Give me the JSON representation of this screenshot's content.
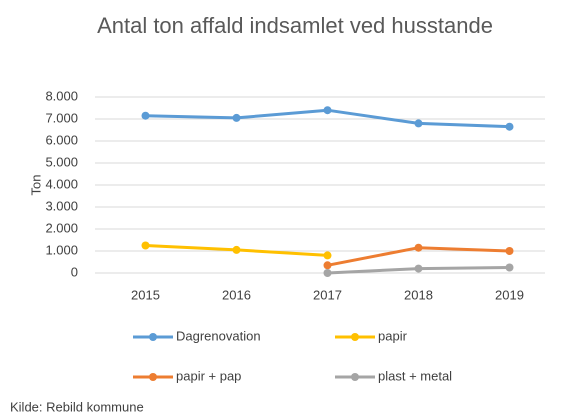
{
  "chart_data": {
    "type": "line",
    "title": "Antal ton affald indsamlet  ved husstande",
    "ylabel": "Ton",
    "categories": [
      "2015",
      "2016",
      "2017",
      "2018",
      "2019"
    ],
    "series": [
      {
        "name": "Dagrenovation",
        "color": "#5b9bd5",
        "values": [
          7150,
          7050,
          7400,
          6800,
          6650
        ]
      },
      {
        "name": "papir",
        "color": "#ffc000",
        "values": [
          1250,
          1050,
          800,
          null,
          null
        ]
      },
      {
        "name": "papir + pap",
        "color": "#ed7d31",
        "values": [
          null,
          null,
          350,
          1150,
          1000
        ]
      },
      {
        "name": "plast + metal",
        "color": "#a5a5a5",
        "values": [
          null,
          null,
          0,
          200,
          250
        ]
      }
    ],
    "ylim": [
      0,
      8000
    ],
    "yticks": [
      0,
      {
        "value": 1000,
        "label": "1.000"
      },
      {
        "value": 2000,
        "label": "2.000"
      },
      {
        "value": 3000,
        "label": "3.000"
      },
      {
        "value": 4000,
        "label": "4.000"
      },
      {
        "value": 5000,
        "label": "5.000"
      },
      {
        "value": 6000,
        "label": "6.000"
      },
      {
        "value": 7000,
        "label": "7.000"
      },
      {
        "value": 8000,
        "label": "8.000"
      }
    ],
    "grid": true,
    "legend": "bottom",
    "source": "Kilde: Rebild kommune"
  }
}
